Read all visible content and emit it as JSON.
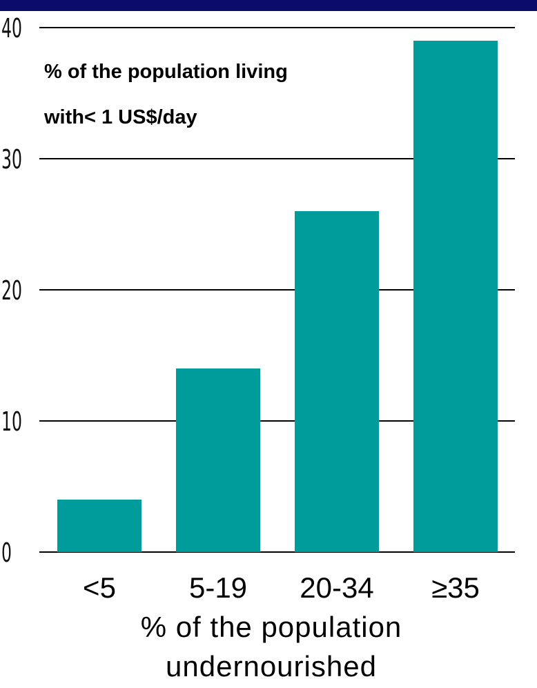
{
  "chart_data": {
    "type": "bar",
    "categories": [
      "<5",
      "5-19",
      "20-34",
      "≥35"
    ],
    "values": [
      4,
      14,
      26,
      39
    ],
    "ylabel_lines": [
      "% of the population living",
      "with< 1 US$/day"
    ],
    "xlabel_lines": [
      "% of the population",
      "undernourished"
    ],
    "yticks": [
      0,
      10,
      20,
      30,
      40
    ],
    "ylim": [
      0,
      40
    ],
    "grid": true,
    "bar_color": "#009b9b",
    "frame_color": "#0b0b6b"
  }
}
